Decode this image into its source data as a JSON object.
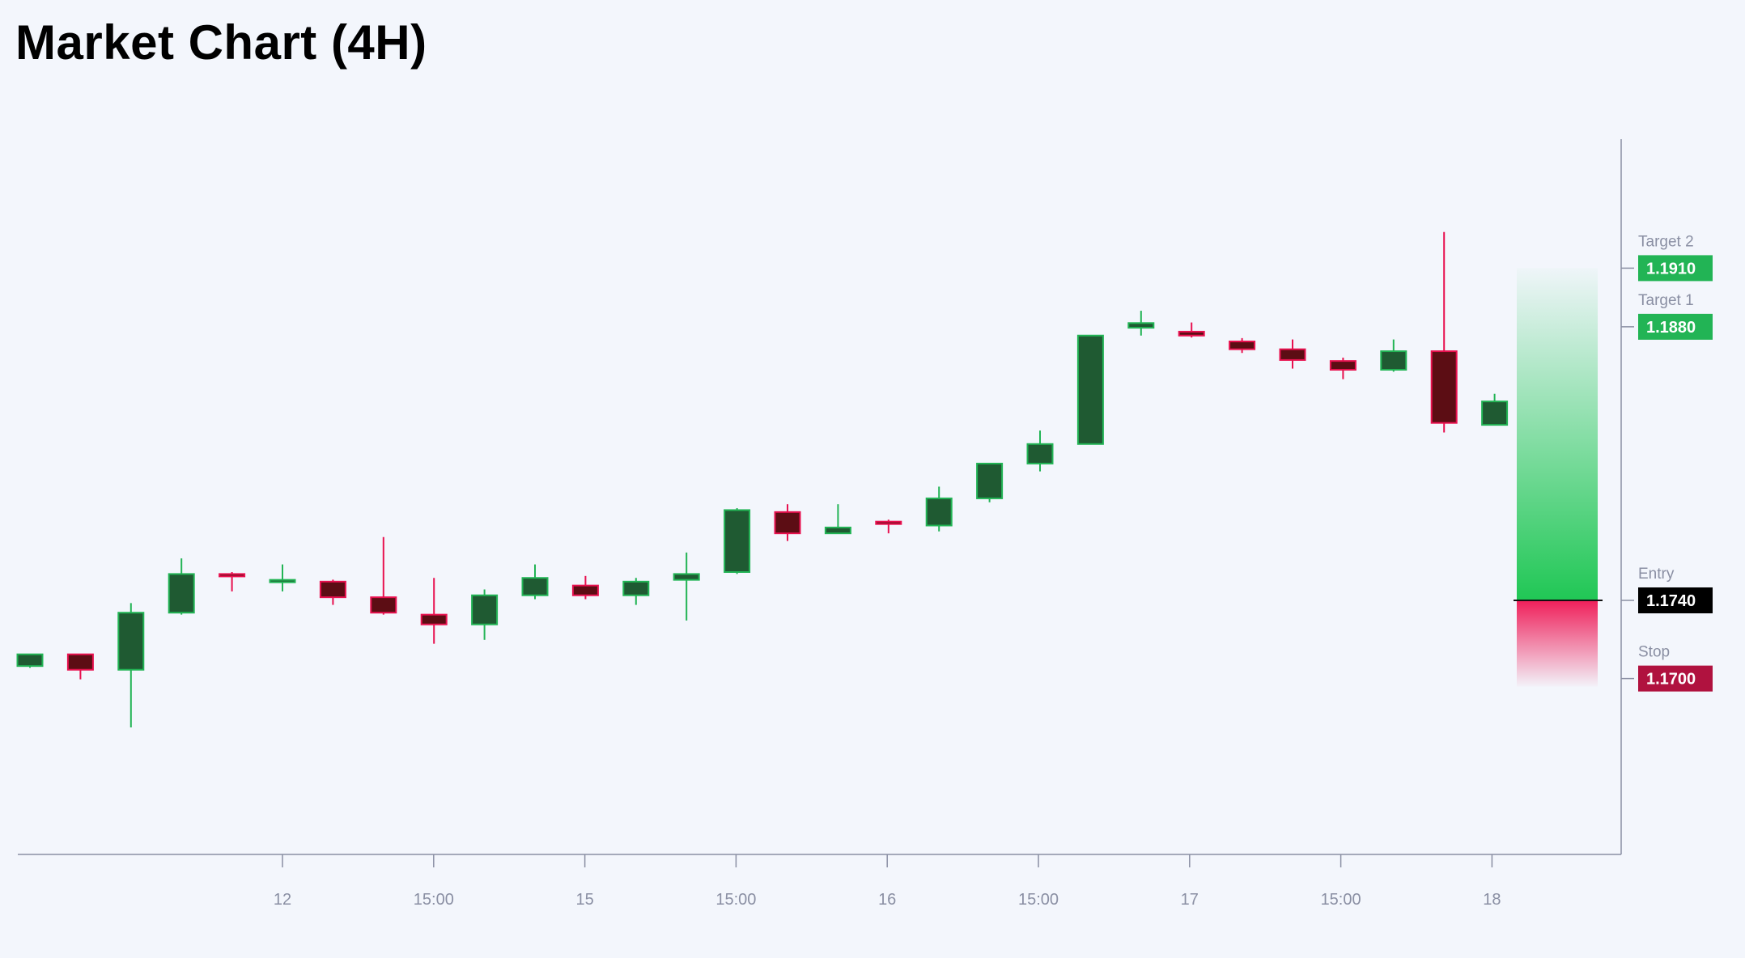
{
  "title": "Market Chart (4H)",
  "colors": {
    "background": "#f3f6fc",
    "axis": "#8a8fa3",
    "bull_body": "#1f5a32",
    "bull_outline": "#22b455",
    "bull_wick": "#22b455",
    "bear_body": "#5c0d14",
    "bear_outline": "#e8114f",
    "bear_wick": "#e8114f",
    "target_badge": "#22b455",
    "entry_badge": "#000000",
    "stop_badge": "#b0123f",
    "profit_zone": "#20c755",
    "loss_zone": "#ef1f5a"
  },
  "chart_data": {
    "type": "candlestick",
    "timeframe": "4H",
    "title": "Market Chart (4H)",
    "x_ticks": [
      "12",
      "15:00",
      "15",
      "15:00",
      "16",
      "15:00",
      "17",
      "15:00",
      "18"
    ],
    "y_range": [
      1.161,
      1.1976
    ],
    "candles": [
      {
        "o": 1.17064,
        "h": 1.17124,
        "l": 1.17055,
        "c": 1.17124
      },
      {
        "o": 1.17124,
        "h": 1.17124,
        "l": 1.16996,
        "c": 1.17045
      },
      {
        "o": 1.17045,
        "h": 1.17386,
        "l": 1.1675,
        "c": 1.17337
      },
      {
        "o": 1.17337,
        "h": 1.17615,
        "l": 1.17327,
        "c": 1.17535
      },
      {
        "o": 1.17535,
        "h": 1.17545,
        "l": 1.17446,
        "c": 1.17525
      },
      {
        "o": 1.17505,
        "h": 1.17584,
        "l": 1.17446,
        "c": 1.17505
      },
      {
        "o": 1.17496,
        "h": 1.17506,
        "l": 1.17377,
        "c": 1.17416
      },
      {
        "o": 1.17416,
        "h": 1.17724,
        "l": 1.17327,
        "c": 1.17337
      },
      {
        "o": 1.17327,
        "h": 1.17515,
        "l": 1.17178,
        "c": 1.17277
      },
      {
        "o": 1.17277,
        "h": 1.17456,
        "l": 1.17198,
        "c": 1.17426
      },
      {
        "o": 1.17426,
        "h": 1.17584,
        "l": 1.17406,
        "c": 1.17515
      },
      {
        "o": 1.17476,
        "h": 1.17525,
        "l": 1.17406,
        "c": 1.17426
      },
      {
        "o": 1.17426,
        "h": 1.17515,
        "l": 1.17377,
        "c": 1.17496
      },
      {
        "o": 1.17505,
        "h": 1.17645,
        "l": 1.17297,
        "c": 1.17535
      },
      {
        "o": 1.17545,
        "h": 1.17872,
        "l": 1.17535,
        "c": 1.17862
      },
      {
        "o": 1.17852,
        "h": 1.17892,
        "l": 1.17704,
        "c": 1.17743
      },
      {
        "o": 1.17743,
        "h": 1.17892,
        "l": 1.17743,
        "c": 1.17773
      },
      {
        "o": 1.17803,
        "h": 1.17813,
        "l": 1.17743,
        "c": 1.17793
      },
      {
        "o": 1.17783,
        "h": 1.17982,
        "l": 1.17753,
        "c": 1.17922
      },
      {
        "o": 1.17922,
        "h": 1.181,
        "l": 1.17902,
        "c": 1.181
      },
      {
        "o": 1.181,
        "h": 1.18269,
        "l": 1.1806,
        "c": 1.182
      },
      {
        "o": 1.182,
        "h": 1.18755,
        "l": 1.182,
        "c": 1.18755
      },
      {
        "o": 1.18795,
        "h": 1.18882,
        "l": 1.18755,
        "c": 1.18819
      },
      {
        "o": 1.18775,
        "h": 1.18822,
        "l": 1.18745,
        "c": 1.18755
      },
      {
        "o": 1.18725,
        "h": 1.18742,
        "l": 1.18666,
        "c": 1.18685
      },
      {
        "o": 1.18685,
        "h": 1.18735,
        "l": 1.18586,
        "c": 1.1863
      },
      {
        "o": 1.18625,
        "h": 1.18642,
        "l": 1.18532,
        "c": 1.1858
      },
      {
        "o": 1.1858,
        "h": 1.18735,
        "l": 1.1857,
        "c": 1.18675
      },
      {
        "o": 1.18675,
        "h": 1.19285,
        "l": 1.18259,
        "c": 1.18308
      },
      {
        "o": 1.18298,
        "h": 1.18457,
        "l": 1.18298,
        "c": 1.18418
      }
    ],
    "levels": [
      {
        "name": "Target 2",
        "value": "1.1910",
        "price": 1.191,
        "type": "target"
      },
      {
        "name": "Target 1",
        "value": "1.1880",
        "price": 1.188,
        "type": "target"
      },
      {
        "name": "Entry",
        "value": "1.1740",
        "price": 1.174,
        "type": "entry"
      },
      {
        "name": "Stop",
        "value": "1.1700",
        "price": 1.17,
        "type": "stop"
      }
    ],
    "profit_zone": {
      "from": 1.174,
      "to": 1.191
    },
    "loss_zone": {
      "from": 1.17,
      "to": 1.174
    }
  }
}
